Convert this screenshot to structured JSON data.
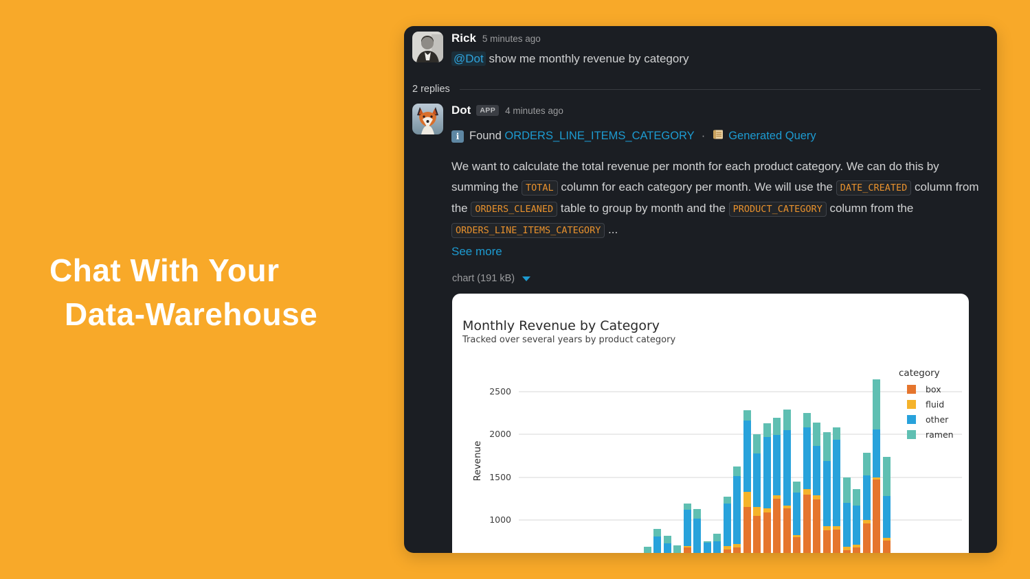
{
  "colors": {
    "background": "#F8A929",
    "panel": "#1B1E23",
    "link": "#1D9BD1",
    "code_text": "#E8912D",
    "box": "#E5752D",
    "fluid": "#F5B32B",
    "other": "#28A2DB",
    "ramen": "#5FBFB2"
  },
  "hero": {
    "title_line1": "Chat With Your",
    "title_line2": "Data-Warehouse"
  },
  "thread": {
    "parent": {
      "author": "Rick",
      "timestamp": "5 minutes ago",
      "mention": "@Dot",
      "message": " show me monthly revenue by category"
    },
    "replies_label": "2 replies",
    "reply": {
      "author": "Dot",
      "app_badge": "APP",
      "timestamp": "4 minutes ago",
      "found_label": "Found",
      "found_link": "ORDERS_LINE_ITEMS_CATEGORY",
      "separator": "·",
      "generated_query_label": "Generated Query",
      "body_segments": [
        {
          "type": "text",
          "value": "We want to calculate the total revenue per month for each product category. We can do this by summing the "
        },
        {
          "type": "code",
          "value": "TOTAL"
        },
        {
          "type": "text",
          "value": " column for each category per month. We will use the "
        },
        {
          "type": "code",
          "value": "DATE_CREATED"
        },
        {
          "type": "text",
          "value": " column from the "
        },
        {
          "type": "code",
          "value": "ORDERS_CLEANED"
        },
        {
          "type": "text",
          "value": " table to group by month and the "
        },
        {
          "type": "code",
          "value": "PRODUCT_CATEGORY"
        },
        {
          "type": "text",
          "value": " column from the "
        },
        {
          "type": "code",
          "value": "ORDERS_LINE_ITEMS_CATEGORY"
        },
        {
          "type": "text",
          "value": " ..."
        }
      ],
      "see_more": "See more",
      "attachment_label": "chart (191 kB)"
    }
  },
  "chart_data": {
    "type": "bar",
    "stacked": true,
    "title": "Monthly Revenue by Category",
    "subtitle": "Tracked over several years by product category",
    "ylabel": "Revenue",
    "yticks": [
      1000,
      1500,
      2000,
      2500
    ],
    "ylim_visible": [
      600,
      2700
    ],
    "grid": true,
    "legend_title": "category",
    "legend_position": "upper right",
    "x_note": "x-axis labels cropped out of view; 25 monthly bars",
    "x_index": [
      1,
      2,
      3,
      4,
      5,
      6,
      7,
      8,
      9,
      10,
      11,
      12,
      13,
      14,
      15,
      16,
      17,
      18,
      19,
      20,
      21,
      22,
      23,
      24,
      25
    ],
    "series": [
      {
        "name": "box",
        "color": "#E5752D",
        "values": [
          310,
          360,
          340,
          290,
          680,
          430,
          390,
          370,
          655,
          680,
          1150,
          1050,
          1090,
          1250,
          1140,
          800,
          1300,
          1240,
          880,
          890,
          650,
          680,
          960,
          1470,
          760
        ]
      },
      {
        "name": "fluid",
        "color": "#F5B32B",
        "values": [
          30,
          30,
          30,
          25,
          20,
          25,
          20,
          20,
          40,
          40,
          180,
          100,
          50,
          40,
          30,
          25,
          60,
          50,
          50,
          40,
          40,
          30,
          40,
          30,
          30
        ]
      },
      {
        "name": "other",
        "color": "#28A2DB",
        "values": [
          240,
          420,
          360,
          275,
          420,
          565,
          330,
          360,
          500,
          790,
          830,
          630,
          830,
          700,
          880,
          495,
          720,
          575,
          760,
          1010,
          510,
          460,
          520,
          560,
          490
        ]
      },
      {
        "name": "ramen",
        "color": "#5FBFB2",
        "values": [
          110,
          85,
          85,
          115,
          70,
          105,
          10,
          90,
          75,
          115,
          120,
          220,
          160,
          200,
          240,
          130,
          165,
          270,
          335,
          140,
          300,
          190,
          265,
          580,
          460
        ]
      }
    ]
  }
}
